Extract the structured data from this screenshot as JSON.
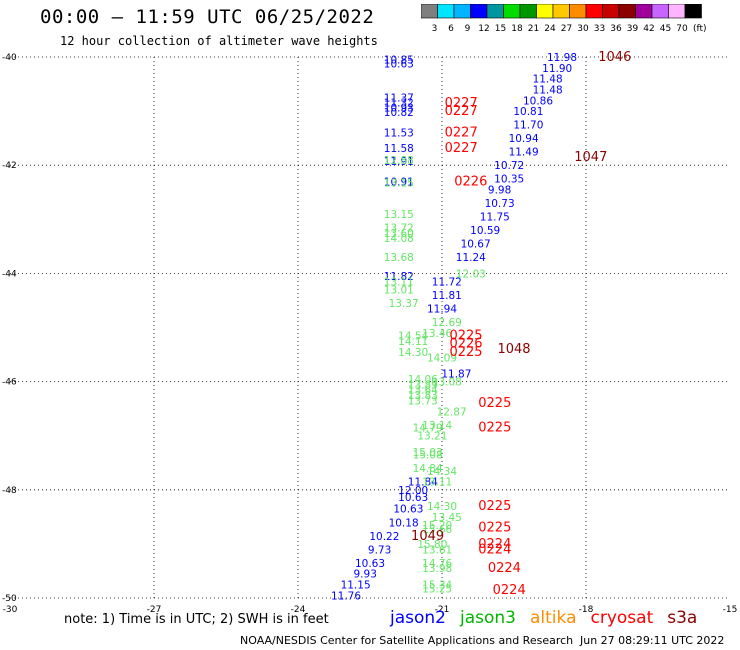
{
  "header": {
    "title": "00:00 – 11:59 UTC 06/25/2022",
    "subtitle": "12 hour collection of altimeter wave heights"
  },
  "colorbar": {
    "colors": [
      "#7f7f7f",
      "#00e5ff",
      "#00b4ff",
      "#0000ff",
      "#0096a0",
      "#00dc00",
      "#009600",
      "#ffff00",
      "#ffc800",
      "#ff8c00",
      "#ff0000",
      "#c80000",
      "#8c0000",
      "#a0009b",
      "#c864ff",
      "#ffb4ff",
      "#000000"
    ],
    "labels": [
      "3",
      "6",
      "9",
      "12",
      "15",
      "18",
      "21",
      "24",
      "27",
      "30",
      "33",
      "36",
      "39",
      "42",
      "45",
      "70"
    ],
    "unit": "(ft)"
  },
  "axes": {
    "lon_ticks": [
      -30,
      -27,
      -24,
      -21,
      -18,
      -15
    ],
    "lat_ticks": [
      -40,
      -42,
      -44,
      -46,
      -48,
      -50
    ],
    "lon_tick_labels": [
      "-30",
      "-27",
      "-24",
      "-21",
      "-18",
      "-15"
    ],
    "lat_tick_labels": [
      "-40",
      "-42",
      "-44",
      "-46",
      "-48",
      "-50"
    ]
  },
  "footer": {
    "note": "note: 1) Time is in UTC; 2) SWH is in feet",
    "credit": "NOAA/NESDIS Center for Satellite Applications and Research",
    "timestamp": "Jun 27 08:29:11 UTC 2022"
  },
  "legend": [
    {
      "name": "jason2",
      "color": "#0000ff"
    },
    {
      "name": "jason3",
      "color": "#00b400"
    },
    {
      "name": "altika",
      "color": "#ff8c00"
    },
    {
      "name": "cryosat",
      "color": "#ff0000"
    },
    {
      "name": "s3a",
      "color": "#8c0000"
    }
  ],
  "chart_data": {
    "type": "scatter",
    "title": "00:00 – 11:59 UTC 06/25/2022",
    "subtitle": "12 hour collection of altimeter wave heights",
    "xlim": [
      -30,
      -15
    ],
    "ylim": [
      -50,
      -40
    ],
    "grid": true,
    "unit": "ft",
    "series": [
      {
        "name": "jason2",
        "color": "#0000ff",
        "points": [
          {
            "lon": -21.9,
            "lat": -40.05,
            "text": "10.85"
          },
          {
            "lon": -21.9,
            "lat": -40.12,
            "text": "10.63"
          },
          {
            "lon": -21.9,
            "lat": -40.75,
            "text": "11.37"
          },
          {
            "lon": -21.9,
            "lat": -40.84,
            "text": "11.32"
          },
          {
            "lon": -21.9,
            "lat": -40.93,
            "text": "10.93"
          },
          {
            "lon": -21.9,
            "lat": -41.02,
            "text": "10.82"
          },
          {
            "lon": -21.9,
            "lat": -41.4,
            "text": "11.53"
          },
          {
            "lon": -21.9,
            "lat": -41.68,
            "text": "11.58"
          },
          {
            "lon": -21.9,
            "lat": -41.92,
            "text": "11.91"
          },
          {
            "lon": -21.9,
            "lat": -42.3,
            "text": "10.91"
          },
          {
            "lon": -21.9,
            "lat": -44.05,
            "text": "11.82"
          },
          {
            "lon": -20.7,
            "lat": -45.85,
            "text": "11.87"
          },
          {
            "lon": -21.4,
            "lat": -47.85,
            "text": "11.84"
          },
          {
            "lon": -21.6,
            "lat": -48.0,
            "text": "12.00"
          },
          {
            "lon": -21.6,
            "lat": -48.13,
            "text": "10.63"
          },
          {
            "lon": -21.7,
            "lat": -48.35,
            "text": "10.63"
          },
          {
            "lon": -21.8,
            "lat": -48.6,
            "text": "10.18"
          },
          {
            "lon": -22.2,
            "lat": -48.85,
            "text": "10.22"
          },
          {
            "lon": -22.3,
            "lat": -49.1,
            "text": "9.73"
          },
          {
            "lon": -22.5,
            "lat": -49.35,
            "text": "10.63"
          },
          {
            "lon": -22.6,
            "lat": -49.55,
            "text": "9.93"
          },
          {
            "lon": -22.8,
            "lat": -49.75,
            "text": "11.15"
          },
          {
            "lon": -23.0,
            "lat": -49.95,
            "text": "11.76"
          }
        ]
      },
      {
        "name": "jason2_track2",
        "color": "#0000ff",
        "points": [
          {
            "lon": -18.5,
            "lat": -40.0,
            "text": "11.98"
          },
          {
            "lon": -18.6,
            "lat": -40.2,
            "text": "11.90"
          },
          {
            "lon": -18.8,
            "lat": -40.4,
            "text": "11.48"
          },
          {
            "lon": -18.8,
            "lat": -40.6,
            "text": "11.48"
          },
          {
            "lon": -19.0,
            "lat": -40.8,
            "text": "10.86"
          },
          {
            "lon": -19.2,
            "lat": -41.0,
            "text": "10.81"
          },
          {
            "lon": -19.2,
            "lat": -41.25,
            "text": "11.70"
          },
          {
            "lon": -19.3,
            "lat": -41.5,
            "text": "10.94"
          },
          {
            "lon": -19.3,
            "lat": -41.75,
            "text": "11.49"
          },
          {
            "lon": -19.6,
            "lat": -42.0,
            "text": "10.72"
          },
          {
            "lon": -19.6,
            "lat": -42.25,
            "text": "10.35"
          },
          {
            "lon": -19.8,
            "lat": -42.45,
            "text": "9.98"
          },
          {
            "lon": -19.8,
            "lat": -42.7,
            "text": "10.73"
          },
          {
            "lon": -19.9,
            "lat": -42.95,
            "text": "11.75"
          },
          {
            "lon": -20.1,
            "lat": -43.2,
            "text": "10.59"
          },
          {
            "lon": -20.3,
            "lat": -43.45,
            "text": "10.67"
          },
          {
            "lon": -20.4,
            "lat": -43.7,
            "text": "11.24"
          },
          {
            "lon": -20.9,
            "lat": -44.15,
            "text": "11.72"
          },
          {
            "lon": -20.9,
            "lat": -44.4,
            "text": "11.81"
          },
          {
            "lon": -21.0,
            "lat": -44.65,
            "text": "11.94"
          }
        ]
      },
      {
        "name": "jason3",
        "color": "#64e664",
        "points": [
          {
            "lon": -21.9,
            "lat": -41.9,
            "text": "12.88"
          },
          {
            "lon": -21.9,
            "lat": -42.32,
            "text": "13.15"
          },
          {
            "lon": -21.9,
            "lat": -42.9,
            "text": "13.15"
          },
          {
            "lon": -21.9,
            "lat": -43.15,
            "text": "13.72"
          },
          {
            "lon": -21.9,
            "lat": -43.25,
            "text": "13.60"
          },
          {
            "lon": -21.9,
            "lat": -43.35,
            "text": "14.08"
          },
          {
            "lon": -21.9,
            "lat": -43.7,
            "text": "13.68"
          },
          {
            "lon": -21.9,
            "lat": -44.15,
            "text": "13.11"
          },
          {
            "lon": -21.9,
            "lat": -44.3,
            "text": "13.01"
          },
          {
            "lon": -21.8,
            "lat": -44.55,
            "text": "13.37"
          },
          {
            "lon": -20.4,
            "lat": -44.0,
            "text": "12.03"
          },
          {
            "lon": -20.9,
            "lat": -44.9,
            "text": "12.69"
          },
          {
            "lon": -21.1,
            "lat": -45.1,
            "text": "13.46"
          },
          {
            "lon": -21.6,
            "lat": -45.15,
            "text": "14.54"
          },
          {
            "lon": -21.6,
            "lat": -45.25,
            "text": "14.11"
          },
          {
            "lon": -21.6,
            "lat": -45.45,
            "text": "14.30"
          },
          {
            "lon": -21.0,
            "lat": -45.55,
            "text": "14.09"
          },
          {
            "lon": -21.4,
            "lat": -45.95,
            "text": "14.06"
          },
          {
            "lon": -21.4,
            "lat": -46.05,
            "text": "13.89"
          },
          {
            "lon": -21.4,
            "lat": -46.15,
            "text": "13.64"
          },
          {
            "lon": -21.4,
            "lat": -46.25,
            "text": "13.83"
          },
          {
            "lon": -21.4,
            "lat": -46.35,
            "text": "13.73"
          },
          {
            "lon": -20.9,
            "lat": -46.0,
            "text": "13.08"
          },
          {
            "lon": -20.8,
            "lat": -46.55,
            "text": "12.87"
          },
          {
            "lon": -21.1,
            "lat": -46.8,
            "text": "13.14"
          },
          {
            "lon": -21.3,
            "lat": -46.85,
            "text": "14.79"
          },
          {
            "lon": -21.2,
            "lat": -47.0,
            "text": "13.21"
          },
          {
            "lon": -21.3,
            "lat": -47.3,
            "text": "15.03"
          },
          {
            "lon": -21.3,
            "lat": -47.35,
            "text": "15.08"
          },
          {
            "lon": -21.3,
            "lat": -47.6,
            "text": "14.84"
          },
          {
            "lon": -21.0,
            "lat": -47.65,
            "text": "14.34"
          },
          {
            "lon": -21.1,
            "lat": -47.85,
            "text": "13.11"
          },
          {
            "lon": -21.0,
            "lat": -48.3,
            "text": "14.30"
          },
          {
            "lon": -20.9,
            "lat": -48.5,
            "text": "13.45"
          },
          {
            "lon": -21.1,
            "lat": -48.65,
            "text": "15.20"
          },
          {
            "lon": -21.1,
            "lat": -48.72,
            "text": "15.66"
          },
          {
            "lon": -21.2,
            "lat": -49.0,
            "text": "15.80"
          },
          {
            "lon": -21.1,
            "lat": -49.1,
            "text": "13.61"
          },
          {
            "lon": -21.1,
            "lat": -49.35,
            "text": "14.76"
          },
          {
            "lon": -21.1,
            "lat": -49.45,
            "text": "13.98"
          },
          {
            "lon": -21.1,
            "lat": -49.75,
            "text": "15.34"
          },
          {
            "lon": -21.1,
            "lat": -49.82,
            "text": "15.25"
          }
        ]
      },
      {
        "name": "cryosat",
        "color": "#ff0000",
        "points": [
          {
            "lon": -20.6,
            "lat": -40.85,
            "text": "0227"
          },
          {
            "lon": -20.6,
            "lat": -41.0,
            "text": "0227"
          },
          {
            "lon": -20.6,
            "lat": -41.4,
            "text": "0227"
          },
          {
            "lon": -20.6,
            "lat": -41.68,
            "text": "0227"
          },
          {
            "lon": -20.4,
            "lat": -42.3,
            "text": "0226"
          },
          {
            "lon": -20.5,
            "lat": -45.15,
            "text": "0225"
          },
          {
            "lon": -20.5,
            "lat": -45.3,
            "text": "0226"
          },
          {
            "lon": -20.5,
            "lat": -45.45,
            "text": "0225"
          },
          {
            "lon": -19.9,
            "lat": -46.4,
            "text": "0225"
          },
          {
            "lon": -19.9,
            "lat": -46.85,
            "text": "0225"
          },
          {
            "lon": -19.9,
            "lat": -48.3,
            "text": "0225"
          },
          {
            "lon": -19.9,
            "lat": -48.7,
            "text": "0225"
          },
          {
            "lon": -19.9,
            "lat": -49.0,
            "text": "0224"
          },
          {
            "lon": -19.9,
            "lat": -49.1,
            "text": "0224"
          },
          {
            "lon": -19.7,
            "lat": -49.45,
            "text": "0224"
          },
          {
            "lon": -19.6,
            "lat": -49.85,
            "text": "0224"
          }
        ]
      },
      {
        "name": "s3a",
        "color": "#8c0000",
        "points": [
          {
            "lon": -17.4,
            "lat": -40.0,
            "text": "1046"
          },
          {
            "lon": -17.9,
            "lat": -41.85,
            "text": "1047"
          },
          {
            "lon": -19.5,
            "lat": -45.4,
            "text": "1048"
          },
          {
            "lon": -21.3,
            "lat": -48.85,
            "text": "1049"
          }
        ]
      }
    ]
  }
}
